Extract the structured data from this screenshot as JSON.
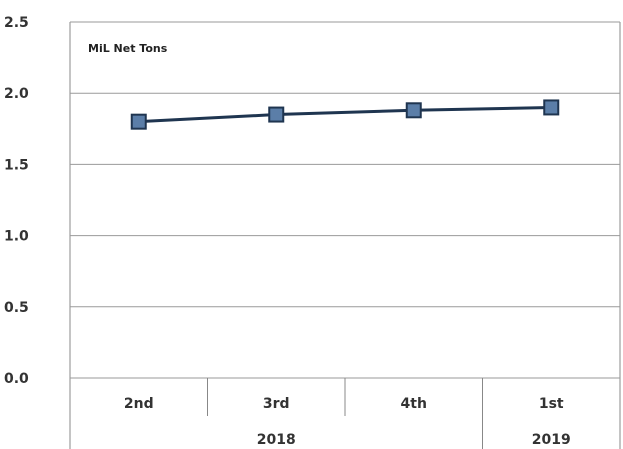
{
  "chart_data": {
    "type": "line",
    "unit_label": "MiL Net Tons",
    "categories": [
      "2nd",
      "3rd",
      "4th",
      "1st"
    ],
    "groups": [
      {
        "label": "2018",
        "span": 3
      },
      {
        "label": "2019",
        "span": 1
      }
    ],
    "series": [
      {
        "values": [
          1.8,
          1.85,
          1.88,
          1.9
        ],
        "color": "#1f3550",
        "marker_color": "#5b7ea8"
      }
    ],
    "ylim": [
      0,
      2.5
    ],
    "yticks": [
      "0.0",
      "0.5",
      "1.0",
      "1.5",
      "2.0",
      "2.5"
    ],
    "grid": true,
    "legend": "none"
  }
}
